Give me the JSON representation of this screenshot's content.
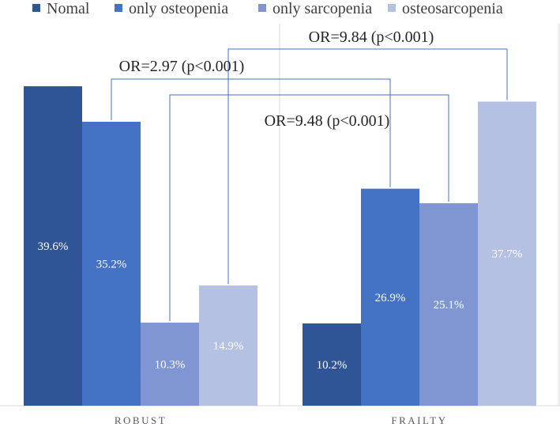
{
  "chart_data": {
    "type": "bar",
    "title": "",
    "xlabel": "",
    "ylabel": "",
    "ylim": [
      0,
      45
    ],
    "grid": false,
    "legend_position": "top",
    "categories": [
      "ROBUST",
      "FRAILTY"
    ],
    "series": [
      {
        "name": "Nomal",
        "color": "#2f5597",
        "values": [
          39.6,
          10.2
        ],
        "labels": [
          "39.6%",
          "10.2%"
        ]
      },
      {
        "name": "only osteopenia",
        "color": "#4472c4",
        "values": [
          35.2,
          26.9
        ],
        "labels": [
          "35.2%",
          "26.9%"
        ]
      },
      {
        "name": "only sarcopenia",
        "color": "#7f96d2",
        "values": [
          10.3,
          25.1
        ],
        "labels": [
          "10.3%",
          "25.1%"
        ]
      },
      {
        "name": "osteosarcopenia",
        "color": "#b4c1e3",
        "values": [
          14.9,
          37.7
        ],
        "labels": [
          "14.9%",
          "37.7%"
        ]
      }
    ],
    "annotations": [
      {
        "text": "OR=9.84 (p<0.001)",
        "from_series": 3,
        "to_series": 3
      },
      {
        "text": "OR=2.97 (p<0.001)",
        "from_series": 1,
        "to_series": 1
      },
      {
        "text": "OR=9.48 (p<0.001)",
        "from_series": 2,
        "to_series": 2
      }
    ]
  },
  "colors": {
    "bracket": "#4472c4",
    "divider": "#d9d9d9",
    "bar_label": "#ffffff"
  }
}
